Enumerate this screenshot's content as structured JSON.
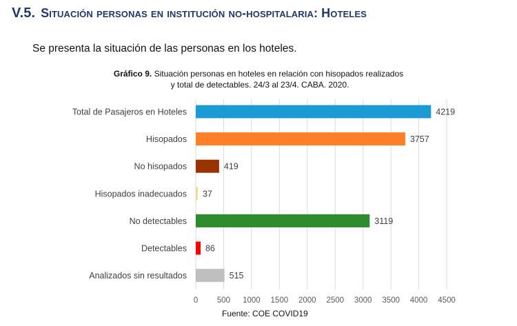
{
  "section": {
    "number": "V.5.",
    "title": "Situación personas en institución no-hospitalaria: Hoteles"
  },
  "intro_text": "Se presenta la situación de las personas en los hoteles.",
  "caption": {
    "label": "Gráfico 9.",
    "line1": "Situación personas en hoteles en relación con hisopados realizados",
    "line2": "y total de detectables. 24/3 al 23/4. CABA. 2020."
  },
  "source_text": "Fuente: COE COVID19",
  "chart_data": {
    "type": "bar",
    "orientation": "horizontal",
    "title": "Gráfico 9. Situación personas en hoteles en relación con hisopados realizados y total de detectables. 24/3 al 23/4. CABA. 2020.",
    "xlabel": "",
    "ylabel": "",
    "categories": [
      "Total de Pasajeros en Hoteles",
      "Hisopados",
      "No hisopados",
      "Hisopados inadecuados",
      "No detectables",
      "Detectables",
      "Analizados sin resultados"
    ],
    "values": [
      4219,
      3757,
      419,
      37,
      3119,
      86,
      515
    ],
    "colors": [
      "#1b9ad6",
      "#fd7f28",
      "#993300",
      "#f5dc8c",
      "#2e8b2e",
      "#ff0000",
      "#bfbfbf"
    ],
    "xlim": [
      0,
      4500
    ],
    "xticks": [
      0,
      500,
      1000,
      1500,
      2000,
      2500,
      3000,
      3500,
      4000,
      4500
    ],
    "grid": "vertical",
    "legend": "none",
    "data_labels": true,
    "source": "Fuente: COE COVID19"
  }
}
